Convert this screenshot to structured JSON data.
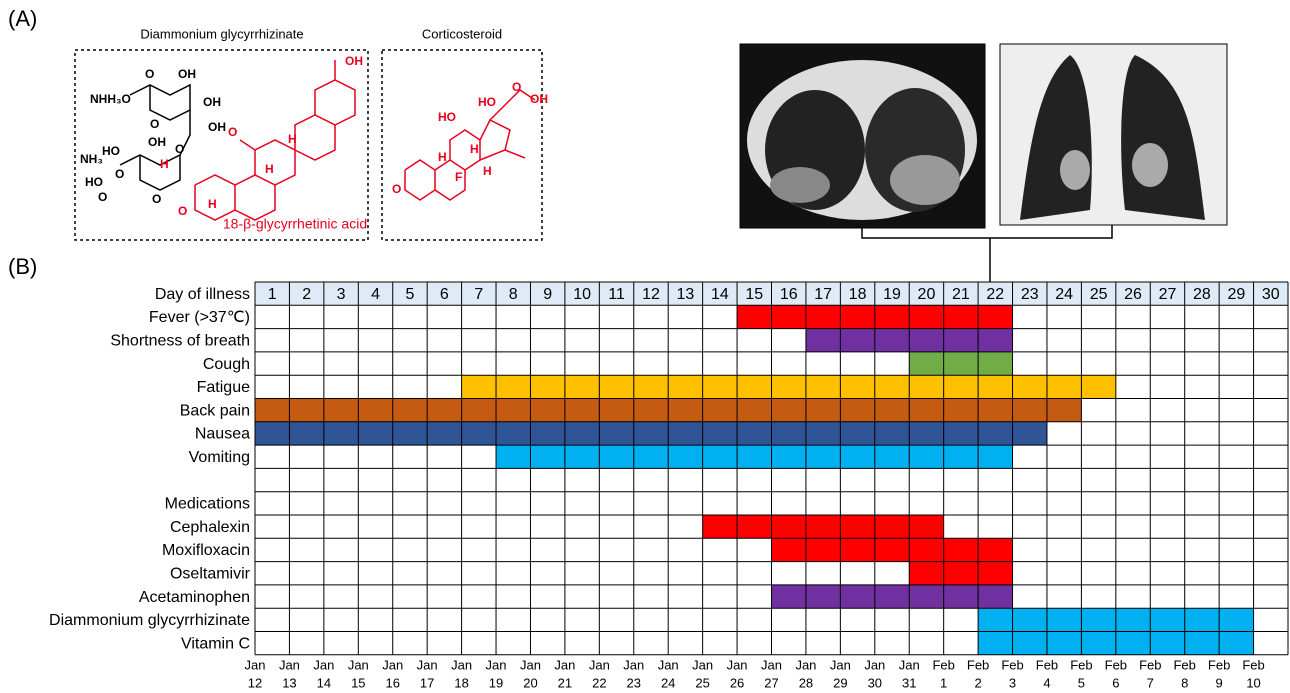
{
  "panel_a": {
    "label": "(A)",
    "structure_1": {
      "title": "Diammonium glycyrrhizinate",
      "caption": "18-β-glycyrrhetinic acid",
      "atoms": [
        "OH",
        "O",
        "OH",
        "NHH₃O",
        "OH",
        "O",
        "OH",
        "NH₃",
        "HO",
        "O",
        "O",
        "HO",
        "O",
        "O",
        "O",
        "H",
        "H",
        "H",
        "H",
        "OH",
        "O"
      ]
    },
    "structure_2": {
      "title": "Corticosteroid",
      "atoms": [
        "HO",
        "O",
        "OH",
        "HO",
        "H",
        "H",
        "F",
        "H",
        "O"
      ]
    }
  },
  "panel_b": {
    "label": "(B)",
    "header_label": "Day of illness",
    "days": [
      1,
      2,
      3,
      4,
      5,
      6,
      7,
      8,
      9,
      10,
      11,
      12,
      13,
      14,
      15,
      16,
      17,
      18,
      19,
      20,
      21,
      22,
      23,
      24,
      25,
      26,
      27,
      28,
      29,
      30
    ],
    "dates": [
      {
        "month": "Jan",
        "day": 12
      },
      {
        "month": "Jan",
        "day": 13
      },
      {
        "month": "Jan",
        "day": 14
      },
      {
        "month": "Jan",
        "day": 15
      },
      {
        "month": "Jan",
        "day": 16
      },
      {
        "month": "Jan",
        "day": 17
      },
      {
        "month": "Jan",
        "day": 18
      },
      {
        "month": "Jan",
        "day": 19
      },
      {
        "month": "Jan",
        "day": 20
      },
      {
        "month": "Jan",
        "day": 21
      },
      {
        "month": "Jan",
        "day": 22
      },
      {
        "month": "Jan",
        "day": 23
      },
      {
        "month": "Jan",
        "day": 24
      },
      {
        "month": "Jan",
        "day": 25
      },
      {
        "month": "Jan",
        "day": 26
      },
      {
        "month": "Jan",
        "day": 27
      },
      {
        "month": "Jan",
        "day": 28
      },
      {
        "month": "Jan",
        "day": 29
      },
      {
        "month": "Jan",
        "day": 30
      },
      {
        "month": "Jan",
        "day": 31
      },
      {
        "month": "Feb",
        "day": 1
      },
      {
        "month": "Feb",
        "day": 2
      },
      {
        "month": "Feb",
        "day": 3
      },
      {
        "month": "Feb",
        "day": 4
      },
      {
        "month": "Feb",
        "day": 5
      },
      {
        "month": "Feb",
        "day": 6
      },
      {
        "month": "Feb",
        "day": 7
      },
      {
        "month": "Feb",
        "day": 8
      },
      {
        "month": "Feb",
        "day": 9
      },
      {
        "month": "Feb",
        "day": 10
      }
    ],
    "symptoms": [
      {
        "label": "Fever (>37℃)",
        "color": "#ff0000",
        "start": 15,
        "end": 22
      },
      {
        "label": "Shortness of breath",
        "color": "#7030a0",
        "start": 17,
        "end": 22
      },
      {
        "label": "Cough",
        "color": "#70ad47",
        "start": 20,
        "end": 22
      },
      {
        "label": "Fatigue",
        "color": "#ffc000",
        "start": 7,
        "end": 25
      },
      {
        "label": "Back pain",
        "color": "#c55a11",
        "start": 1,
        "end": 24
      },
      {
        "label": "Nausea",
        "color": "#2f5597",
        "start": 1,
        "end": 23
      },
      {
        "label": "Vomiting",
        "color": "#00b0f0",
        "start": 8,
        "end": 22
      }
    ],
    "medications_heading": "Medications",
    "medications": [
      {
        "label": "Cephalexin",
        "color": "#ff0000",
        "start": 14,
        "end": 20
      },
      {
        "label": "Moxifloxacin",
        "color": "#ff0000",
        "start": 16,
        "end": 22
      },
      {
        "label": "Oseltamivir",
        "color": "#ff0000",
        "start": 20,
        "end": 22
      },
      {
        "label": "Acetaminophen",
        "color": "#7030a0",
        "start": 16,
        "end": 22
      },
      {
        "label": "Diammonium glycyrrhizinate",
        "color": "#00b0f0",
        "start": 22,
        "end": 29
      },
      {
        "label": "Vitamin C",
        "color": "#00b0f0",
        "start": 22,
        "end": 29
      }
    ]
  }
}
